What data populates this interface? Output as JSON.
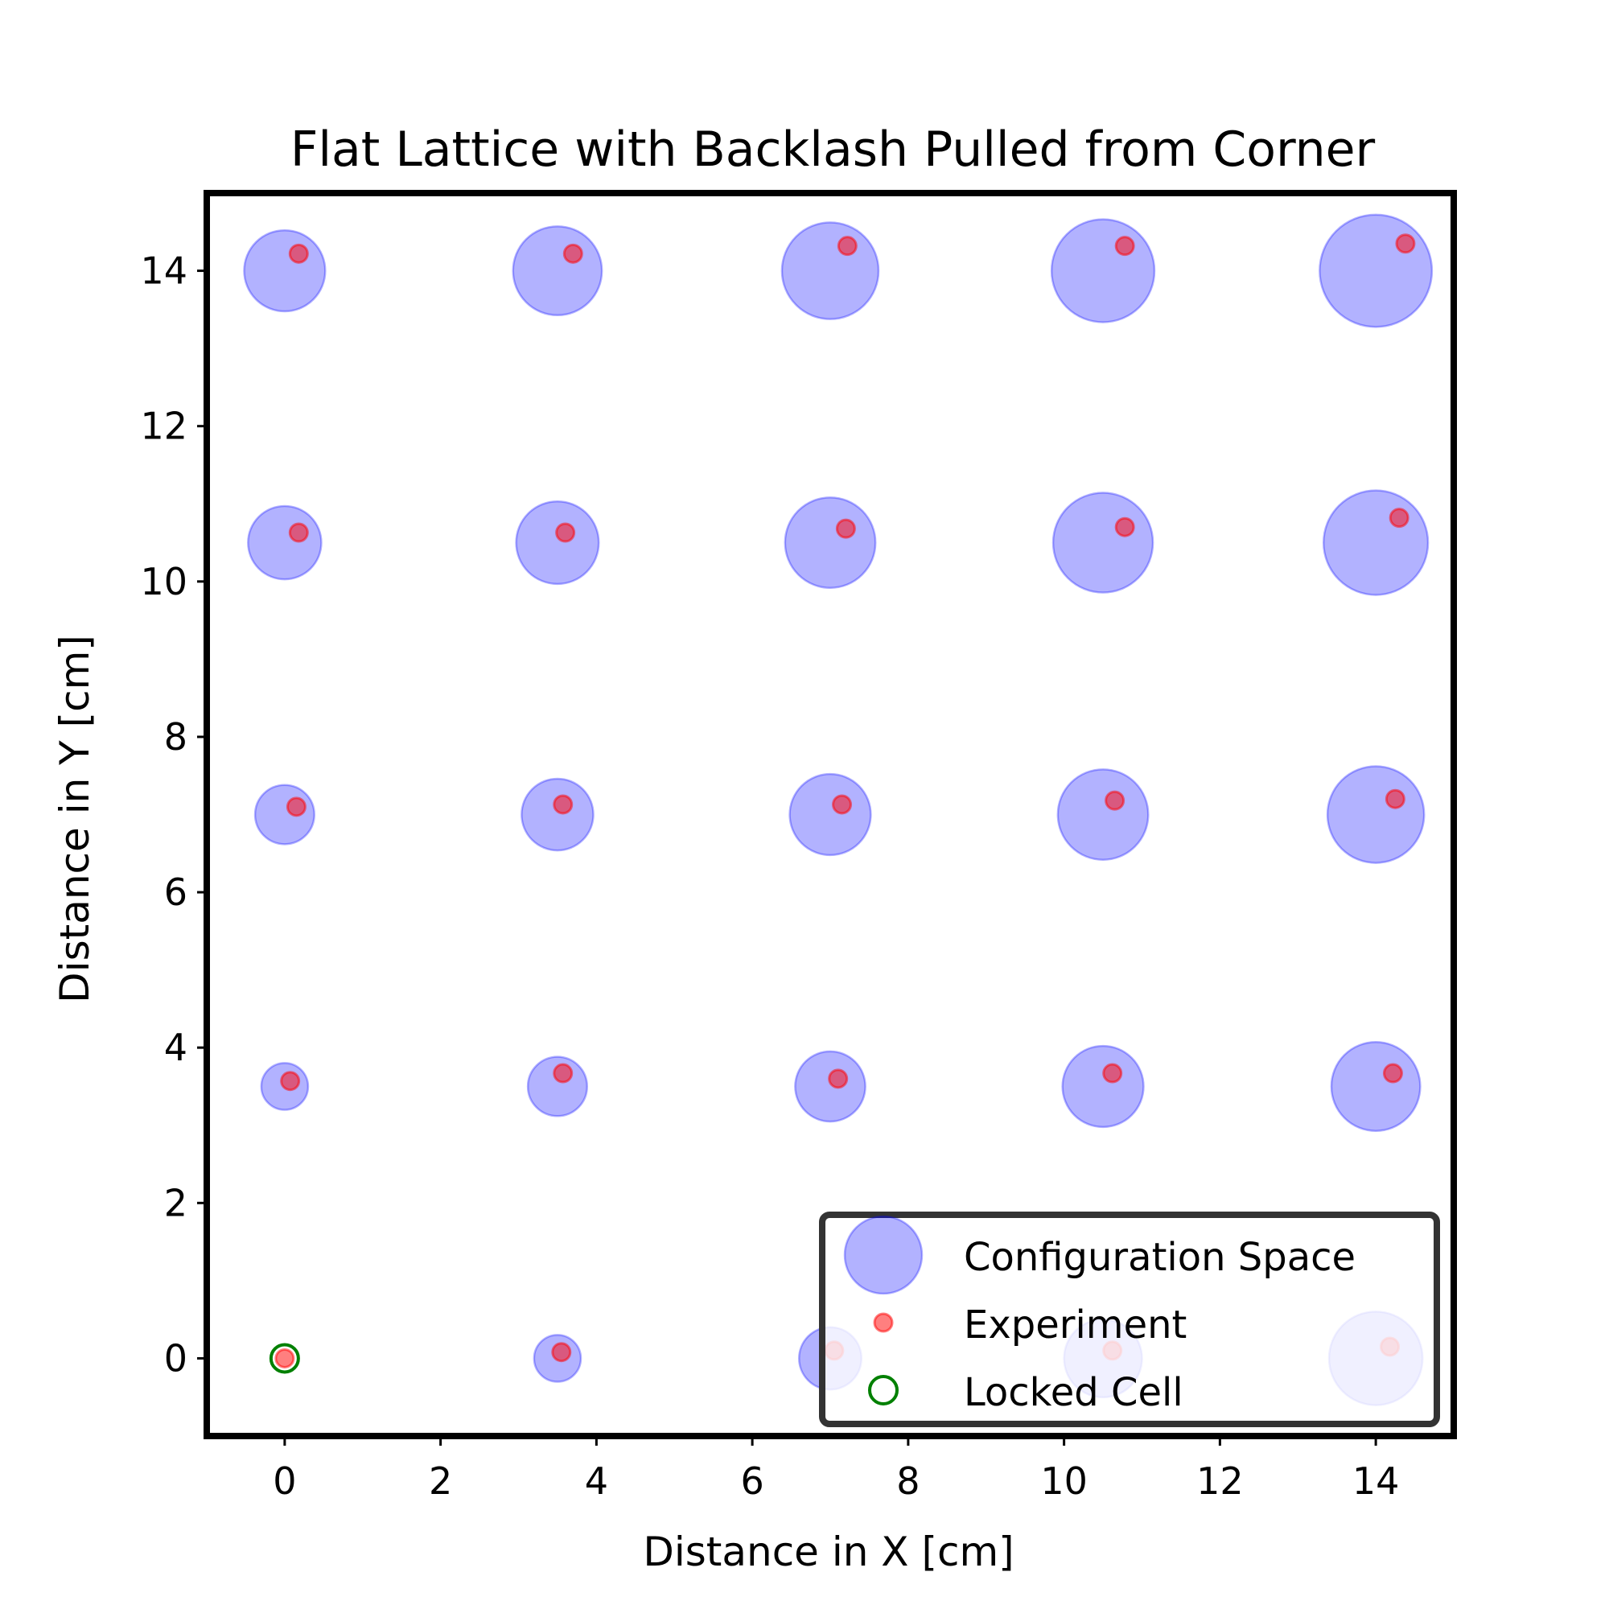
{
  "chart_data": {
    "type": "scatter",
    "title": "Flat Lattice with Backlash Pulled from Corner",
    "xlabel": "Distance in X [cm]",
    "ylabel": "Distance in Y [cm]",
    "xlim": [
      -1,
      15
    ],
    "ylim": [
      -1,
      15
    ],
    "xticks": [
      0,
      2,
      4,
      6,
      8,
      10,
      12,
      14
    ],
    "yticks": [
      0,
      2,
      4,
      6,
      8,
      10,
      12,
      14
    ],
    "grid": false,
    "legend_position": "lower-right",
    "colors": {
      "configuration_space": "#0000ff",
      "experiment": "#ff0000",
      "locked_cell": "#008000",
      "frame": "#000000"
    },
    "series": [
      {
        "name": "Configuration Space",
        "marker": "large-circle",
        "points": [
          {
            "x": 0,
            "y": 0,
            "r": 0
          },
          {
            "x": 3.5,
            "y": 0,
            "r": 0.3
          },
          {
            "x": 7,
            "y": 0,
            "r": 0.4
          },
          {
            "x": 10.5,
            "y": 0,
            "r": 0.5
          },
          {
            "x": 14,
            "y": 0,
            "r": 0.6
          },
          {
            "x": 0,
            "y": 3.5,
            "r": 0.3
          },
          {
            "x": 3.5,
            "y": 3.5,
            "r": 0.38
          },
          {
            "x": 7,
            "y": 3.5,
            "r": 0.45
          },
          {
            "x": 10.5,
            "y": 3.5,
            "r": 0.52
          },
          {
            "x": 14,
            "y": 3.5,
            "r": 0.57
          },
          {
            "x": 0,
            "y": 7,
            "r": 0.38
          },
          {
            "x": 3.5,
            "y": 7,
            "r": 0.46
          },
          {
            "x": 7,
            "y": 7,
            "r": 0.52
          },
          {
            "x": 10.5,
            "y": 7,
            "r": 0.58
          },
          {
            "x": 14,
            "y": 7,
            "r": 0.62
          },
          {
            "x": 0,
            "y": 10.5,
            "r": 0.47
          },
          {
            "x": 3.5,
            "y": 10.5,
            "r": 0.53
          },
          {
            "x": 7,
            "y": 10.5,
            "r": 0.58
          },
          {
            "x": 10.5,
            "y": 10.5,
            "r": 0.64
          },
          {
            "x": 14,
            "y": 10.5,
            "r": 0.67
          },
          {
            "x": 0,
            "y": 14,
            "r": 0.52
          },
          {
            "x": 3.5,
            "y": 14,
            "r": 0.57
          },
          {
            "x": 7,
            "y": 14,
            "r": 0.62
          },
          {
            "x": 10.5,
            "y": 14,
            "r": 0.66
          },
          {
            "x": 14,
            "y": 14,
            "r": 0.72
          }
        ]
      },
      {
        "name": "Experiment",
        "marker": "small-circle",
        "points": [
          {
            "x": 0,
            "y": 0
          },
          {
            "x": 3.55,
            "y": 0.08
          },
          {
            "x": 7.05,
            "y": 0.1
          },
          {
            "x": 10.62,
            "y": 0.1
          },
          {
            "x": 14.18,
            "y": 0.15
          },
          {
            "x": 0.07,
            "y": 3.57
          },
          {
            "x": 3.57,
            "y": 3.67
          },
          {
            "x": 7.1,
            "y": 3.6
          },
          {
            "x": 10.62,
            "y": 3.67
          },
          {
            "x": 14.22,
            "y": 3.67
          },
          {
            "x": 0.15,
            "y": 7.1
          },
          {
            "x": 3.57,
            "y": 7.13
          },
          {
            "x": 7.15,
            "y": 7.13
          },
          {
            "x": 10.65,
            "y": 7.18
          },
          {
            "x": 14.25,
            "y": 7.2
          },
          {
            "x": 0.18,
            "y": 10.63
          },
          {
            "x": 3.6,
            "y": 10.63
          },
          {
            "x": 7.2,
            "y": 10.68
          },
          {
            "x": 10.78,
            "y": 10.7
          },
          {
            "x": 14.3,
            "y": 10.82
          },
          {
            "x": 0.18,
            "y": 14.22
          },
          {
            "x": 3.7,
            "y": 14.22
          },
          {
            "x": 7.22,
            "y": 14.32
          },
          {
            "x": 10.78,
            "y": 14.32
          },
          {
            "x": 14.38,
            "y": 14.35
          }
        ]
      },
      {
        "name": "Locked Cell",
        "marker": "hollow-circle",
        "points": [
          {
            "x": 0,
            "y": 0
          }
        ]
      }
    ]
  }
}
